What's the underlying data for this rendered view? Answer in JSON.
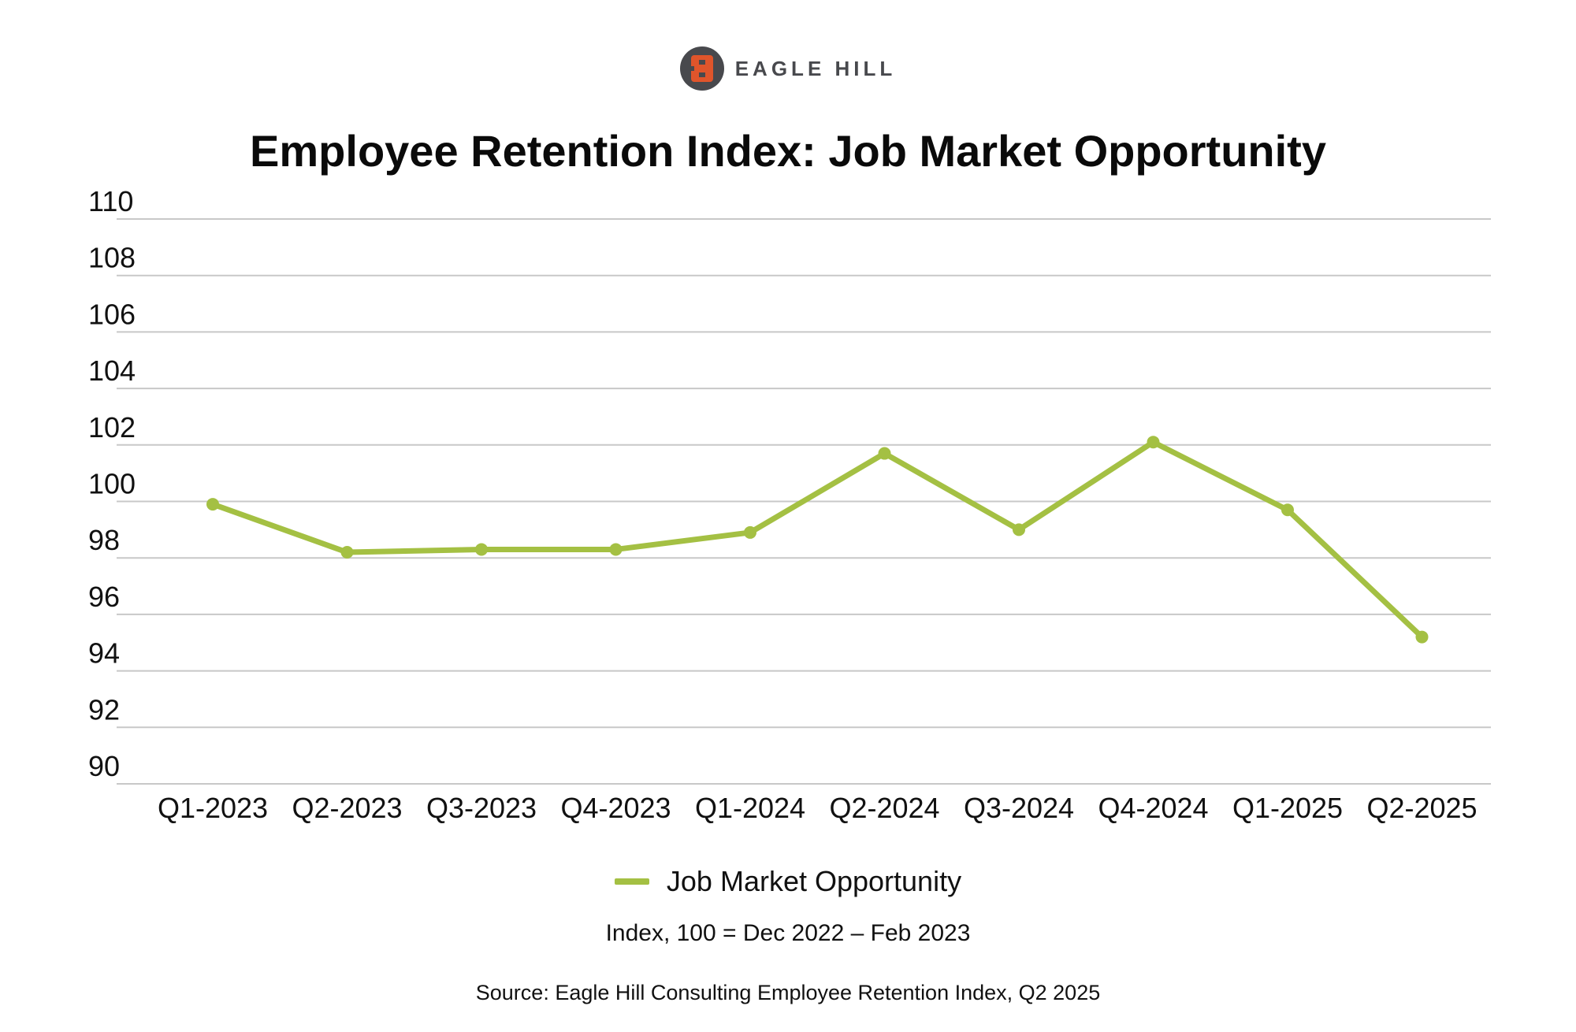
{
  "logo": {
    "text": "EAGLE HILL",
    "mark_color": "#48494d",
    "accent_color": "#e0552b"
  },
  "chart_data": {
    "type": "line",
    "title": "Employee Retention Index: Job Market Opportunity",
    "subtitle": "Index, 100 = Dec 2022 – Feb 2023",
    "source": "Source: Eagle Hill Consulting Employee Retention Index, Q2 2025",
    "xlabel": "",
    "ylabel": "",
    "ylim": [
      90,
      110
    ],
    "yticks": [
      110,
      108,
      106,
      104,
      102,
      100,
      98,
      96,
      94,
      92,
      90
    ],
    "grid": true,
    "legend_position": "bottom",
    "categories": [
      "Q1-2023",
      "Q2-2023",
      "Q3-2023",
      "Q4-2023",
      "Q1-2024",
      "Q2-2024",
      "Q3-2024",
      "Q4-2024",
      "Q1-2025",
      "Q2-2025"
    ],
    "series": [
      {
        "name": "Job Market Opportunity",
        "color": "#a4c043",
        "values": [
          99.9,
          98.2,
          98.3,
          98.3,
          98.9,
          101.7,
          99.0,
          102.1,
          99.7,
          95.2
        ]
      }
    ]
  }
}
